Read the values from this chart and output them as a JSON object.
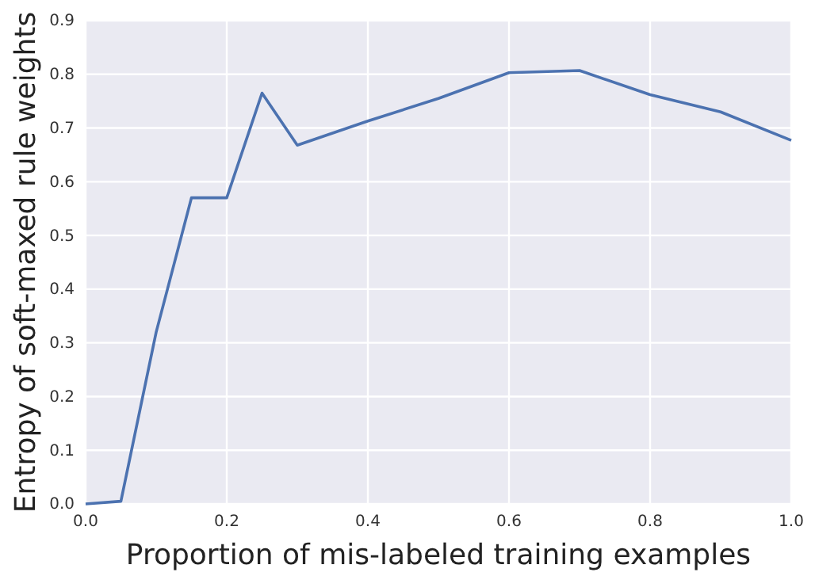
{
  "chart_data": {
    "type": "line",
    "xlabel": "Proportion of mis-labeled training examples",
    "ylabel": "Entropy of soft-maxed rule weights",
    "x": [
      0,
      0.05,
      0.1,
      0.15,
      0.2,
      0.25,
      0.3,
      0.4,
      0.5,
      0.6,
      0.7,
      0.8,
      0.9,
      1.0
    ],
    "series": [
      {
        "color": "#4c72b0",
        "values": [
          0,
          0.005,
          0.32,
          0.57,
          0.57,
          0.765,
          0.668,
          0.713,
          0.755,
          0.803,
          0.807,
          0.762,
          0.73,
          0.677
        ]
      }
    ],
    "xlim": [
      0,
      1
    ],
    "ylim": [
      0,
      0.9
    ],
    "xticks": [
      {
        "value": 0,
        "label": "0.0"
      },
      0.2,
      0.4,
      0.6,
      0.8,
      {
        "value": 1,
        "label": "1.0"
      }
    ],
    "yticks": [
      {
        "value": 0,
        "label": "0.0"
      },
      0.1,
      0.2,
      0.3,
      0.4,
      0.5,
      0.6,
      0.7,
      0.8,
      0.9
    ],
    "grid": true,
    "marker": "none",
    "line_style": "solid"
  }
}
